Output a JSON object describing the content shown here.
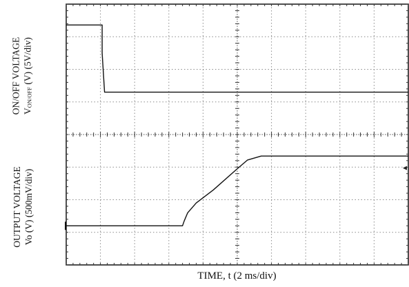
{
  "chart_data": {
    "type": "line",
    "xlabel": "TIME, t (2 ms/div)",
    "x_unit_per_div": "2 ms/div",
    "divisions": {
      "x": 10,
      "y": 8
    },
    "grid": true,
    "panels": [
      {
        "ylabel_line1": "ON/OFF VOLTAGE",
        "ylabel_line2_prefix": "V",
        "ylabel_line2_sub": "ON/OFF",
        "ylabel_line2_suffix": " (V) (5V/div)",
        "y_unit_per_div": "5V/div",
        "ylim_div": [
          4,
          8
        ],
        "trace": {
          "x": [
            0,
            1.05,
            1.05,
            1.12,
            10
          ],
          "y": [
            7.36,
            7.36,
            6.5,
            5.3,
            5.3
          ]
        }
      },
      {
        "ylabel_line1": "OUTPUT VOLTAGE",
        "ylabel_line2_prefix": "Vo (V) (500mV/div)",
        "ylabel_line2_sub": "",
        "ylabel_line2_suffix": "",
        "y_unit_per_div": "500mV/div",
        "ylim_div": [
          0,
          4
        ],
        "trace": {
          "x": [
            0,
            3.4,
            3.45,
            3.55,
            3.8,
            4.3,
            5.0,
            5.3,
            5.7,
            10
          ],
          "y": [
            1.2,
            1.2,
            1.35,
            1.6,
            1.9,
            2.3,
            2.95,
            3.22,
            3.34,
            3.34
          ]
        }
      }
    ]
  }
}
